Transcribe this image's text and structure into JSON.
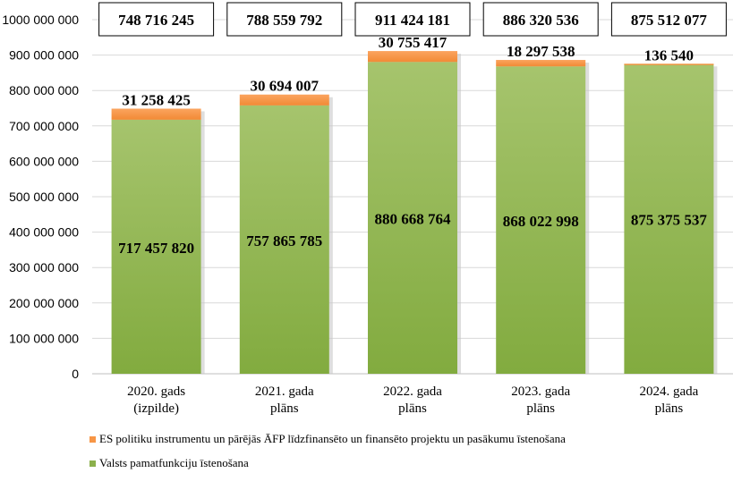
{
  "chart_data": {
    "type": "bar",
    "stacked": true,
    "title": "",
    "xlabel": "",
    "ylabel": "",
    "ylim": [
      0,
      1000000000
    ],
    "y_ticks": [
      "0",
      "100 000 000",
      "200 000 000",
      "300 000 000",
      "400 000 000",
      "500 000 000",
      "600 000 000",
      "700 000 000",
      "800 000 000",
      "900 000 000",
      "1000 000 000"
    ],
    "grid": true,
    "categories": [
      "2020. gads\n(izpilde)",
      "2021. gada\nplāns",
      "2022. gada\nplāns",
      "2023. gada\nplāns",
      "2024. gada\nplāns"
    ],
    "series": [
      {
        "name": "Valsts pamatfunkciju īstenošana",
        "color": "#8bb04c",
        "values": [
          717457820,
          757865785,
          880668764,
          868022998,
          875375537
        ],
        "labels": [
          "717 457 820",
          "757 865 785",
          "880 668 764",
          "868 022 998",
          "875 375 537"
        ]
      },
      {
        "name": "ES politiku instrumentu un pārējās ĀFP līdzfinansēto un finansēto projektu un pasākumu īstenošana",
        "color": "#f79646",
        "values": [
          31258425,
          30694007,
          30755417,
          18297538,
          136540
        ],
        "labels": [
          "31 258 425",
          "30 694 007",
          "30 755 417",
          "18 297 538",
          "136 540"
        ]
      }
    ],
    "totals": [
      "748 716 245",
      "788 559 792",
      "911 424 181",
      "886 320 536",
      "875 512 077"
    ],
    "legend_position": "bottom"
  }
}
